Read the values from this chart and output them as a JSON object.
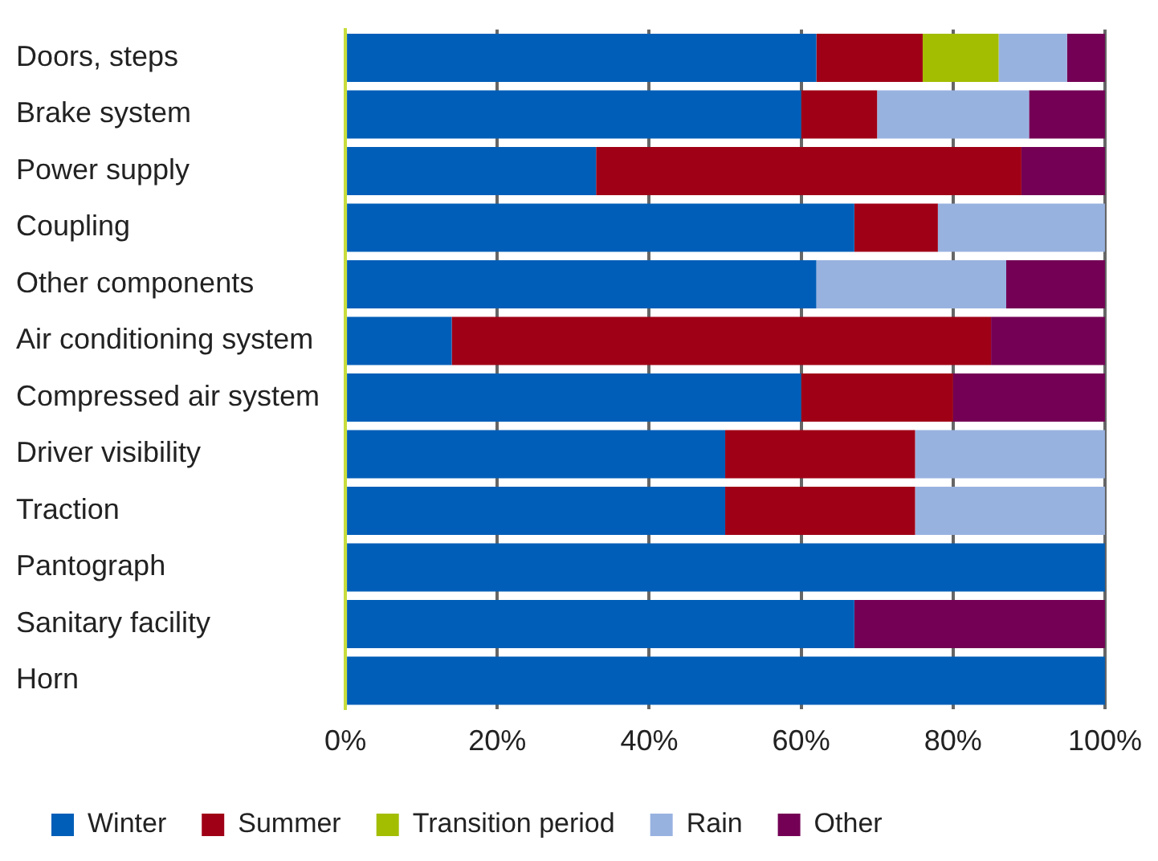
{
  "chart_data": {
    "type": "bar",
    "orientation": "horizontal",
    "stacked": true,
    "categories": [
      "Doors, steps",
      "Brake system",
      "Power supply",
      "Coupling",
      "Other components",
      "Air conditioning system",
      "Compressed air system",
      "Driver visibility",
      "Traction",
      "Pantograph",
      "Sanitary facility",
      "Horn"
    ],
    "series": [
      {
        "name": "Winter",
        "color": "#005eb8",
        "values": [
          62,
          60,
          33,
          67,
          62,
          14,
          60,
          50,
          50,
          100,
          67,
          100
        ]
      },
      {
        "name": "Summer",
        "color": "#a00016",
        "values": [
          14,
          10,
          56,
          11,
          null,
          71,
          20,
          25,
          25,
          null,
          null,
          null
        ]
      },
      {
        "name": "Transition period",
        "color": "#a3bd00",
        "values": [
          10,
          null,
          null,
          null,
          null,
          null,
          null,
          null,
          null,
          null,
          null,
          null
        ]
      },
      {
        "name": "Rain",
        "color": "#98b2e0",
        "values": [
          9,
          20,
          null,
          22,
          25,
          null,
          null,
          25,
          25,
          null,
          null,
          null
        ]
      },
      {
        "name": "Other",
        "color": "#740055",
        "values": [
          5,
          10,
          11,
          null,
          13,
          15,
          20,
          null,
          null,
          null,
          33,
          null
        ]
      }
    ],
    "xlim": [
      0,
      100
    ],
    "xticks": [
      {
        "value": 0,
        "label": "0%"
      },
      {
        "value": 20,
        "label": "20%"
      },
      {
        "value": 40,
        "label": "40%"
      },
      {
        "value": 60,
        "label": "60%"
      },
      {
        "value": 80,
        "label": "80%"
      },
      {
        "value": 100,
        "label": "100%"
      }
    ],
    "grid": "x",
    "legend": "bottom"
  }
}
